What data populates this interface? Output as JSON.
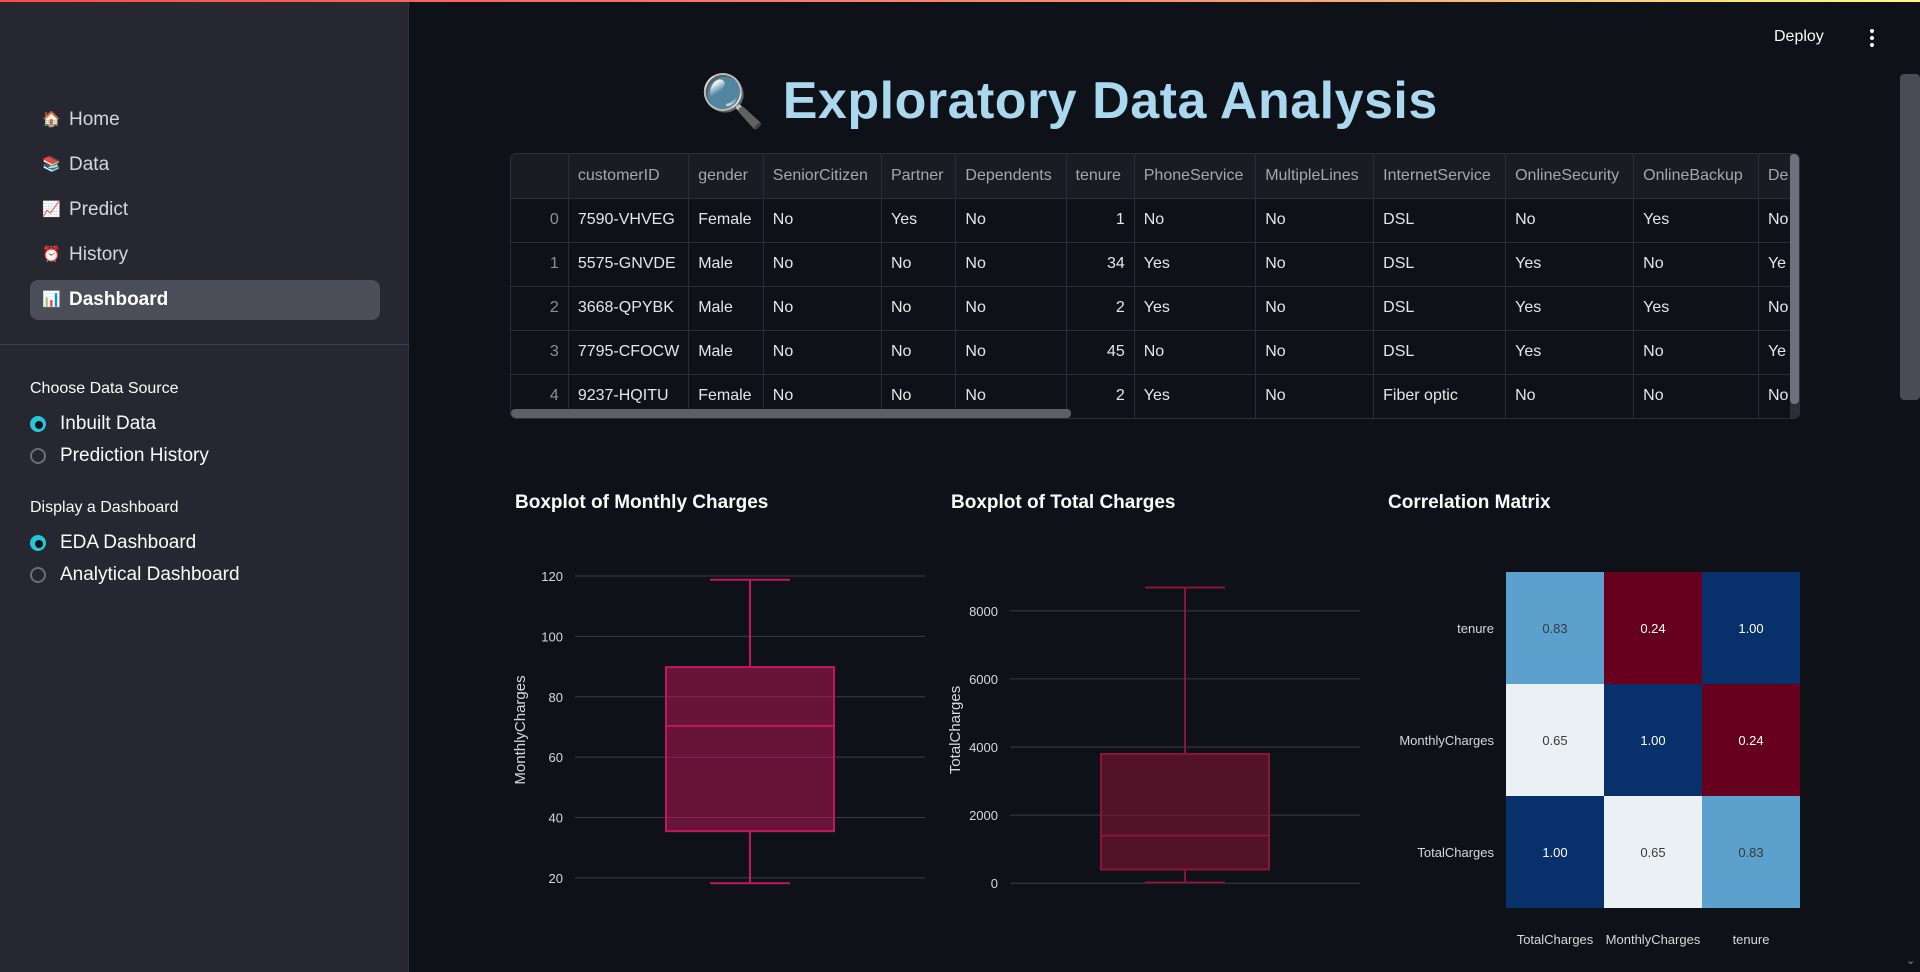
{
  "header": {
    "deploy_label": "Deploy",
    "menu_icon": "kebab-menu-icon"
  },
  "sidebar": {
    "nav": [
      {
        "icon": "house-icon",
        "glyph": "🏠",
        "label": "Home"
      },
      {
        "icon": "books-icon",
        "glyph": "📚",
        "label": "Data"
      },
      {
        "icon": "chart-up-icon",
        "glyph": "📈",
        "label": "Predict"
      },
      {
        "icon": "alarm-clock-icon",
        "glyph": "⏰",
        "label": "History"
      },
      {
        "icon": "bar-chart-icon",
        "glyph": "📊",
        "label": "Dashboard",
        "active": true
      }
    ],
    "data_source": {
      "title": "Choose Data Source",
      "options": [
        {
          "label": "Inbuilt Data",
          "checked": true
        },
        {
          "label": "Prediction History",
          "checked": false
        }
      ]
    },
    "dashboard_type": {
      "title": "Display a Dashboard",
      "options": [
        {
          "label": "EDA Dashboard",
          "checked": true
        },
        {
          "label": "Analytical Dashboard",
          "checked": false
        }
      ]
    }
  },
  "main": {
    "title_icon": "🔍",
    "title": "Exploratory Data Analysis",
    "table": {
      "columns": [
        "",
        "customerID",
        "gender",
        "SeniorCitizen",
        "Partner",
        "Dependents",
        "tenure",
        "PhoneService",
        "MultipleLines",
        "InternetService",
        "OnlineSecurity",
        "OnlineBackup",
        "De"
      ],
      "rows": [
        [
          "0",
          "7590-VHVEG",
          "Female",
          "No",
          "Yes",
          "No",
          "1",
          "No",
          "No",
          "DSL",
          "No",
          "Yes",
          "No"
        ],
        [
          "1",
          "5575-GNVDE",
          "Male",
          "No",
          "No",
          "No",
          "34",
          "Yes",
          "No",
          "DSL",
          "Yes",
          "No",
          "Ye"
        ],
        [
          "2",
          "3668-QPYBK",
          "Male",
          "No",
          "No",
          "No",
          "2",
          "Yes",
          "No",
          "DSL",
          "Yes",
          "Yes",
          "No"
        ],
        [
          "3",
          "7795-CFOCW",
          "Male",
          "No",
          "No",
          "No",
          "45",
          "No",
          "No",
          "DSL",
          "Yes",
          "No",
          "Ye"
        ],
        [
          "4",
          "9237-HQITU",
          "Female",
          "No",
          "No",
          "No",
          "2",
          "Yes",
          "No",
          "Fiber optic",
          "No",
          "No",
          "No"
        ]
      ]
    },
    "charts": {
      "monthly_title": "Boxplot of Monthly Charges",
      "total_title": "Boxplot of Total Charges",
      "corr_title": "Correlation Matrix"
    }
  },
  "chart_data": [
    {
      "type": "box",
      "title": "Boxplot of Monthly Charges",
      "ylabel": "MonthlyCharges",
      "yticks": [
        20,
        40,
        60,
        80,
        100,
        120
      ],
      "ylim": [
        16,
        122
      ],
      "min": 18.25,
      "q1": 35.5,
      "median": 70.35,
      "q3": 89.85,
      "max": 118.75,
      "color": "#c2185b"
    },
    {
      "type": "box",
      "title": "Boxplot of Total Charges",
      "ylabel": "TotalCharges",
      "yticks": [
        0,
        2000,
        4000,
        6000,
        8000
      ],
      "ylim": [
        -200,
        9200
      ],
      "min": 18.8,
      "q1": 401.4,
      "median": 1397.5,
      "q3": 3794.7,
      "max": 8684.8,
      "color": "#8a1538"
    },
    {
      "type": "heatmap",
      "title": "Correlation Matrix",
      "rows": [
        "tenure",
        "MonthlyCharges",
        "TotalCharges"
      ],
      "cols": [
        "TotalCharges",
        "MonthlyCharges",
        "tenure"
      ],
      "values": [
        [
          0.83,
          0.24,
          1.0
        ],
        [
          0.65,
          1.0,
          0.24
        ],
        [
          1.0,
          0.65,
          0.83
        ]
      ],
      "labels": [
        [
          "0.83",
          "0.24",
          "1.00"
        ],
        [
          "0.65",
          "1.00",
          "0.24"
        ],
        [
          "1.00",
          "0.65",
          "0.83"
        ]
      ]
    }
  ]
}
